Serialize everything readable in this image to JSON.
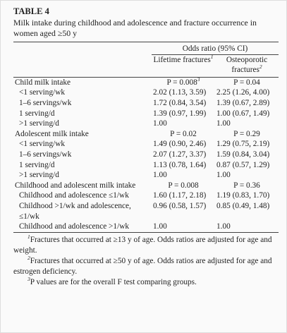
{
  "title": "TABLE 4",
  "caption": "Milk intake during childhood and adolescence and fracture occurrence in women aged ≥50 y",
  "header": {
    "group": "Odds ratio (95% CI)",
    "columns": [
      {
        "label": "Lifetime fractures",
        "note": "1"
      },
      {
        "label": "Osteoporotic fractures",
        "note": "2"
      }
    ]
  },
  "sections": [
    {
      "title": "Child milk intake",
      "cells": [
        "P = 0.008",
        "P = 0.04"
      ],
      "cell_note": "3",
      "rows": [
        [
          "<1 serving/wk",
          "2.02 (1.13, 3.59)",
          "2.25 (1.26, 4.00)"
        ],
        [
          "1–6 servings/wk",
          "1.72 (0.84, 3.54)",
          "1.39 (0.67, 2.89)"
        ],
        [
          "1 serving/d",
          "1.39 (0.97, 1.99)",
          "1.00 (0.67, 1.49)"
        ],
        [
          ">1 serving/d",
          "1.00",
          "1.00"
        ]
      ]
    },
    {
      "title": "Adolescent milk intake",
      "cells": [
        "P = 0.02",
        "P = 0.29"
      ],
      "rows": [
        [
          "<1 serving/wk",
          "1.49 (0.90, 2.46)",
          "1.29 (0.75, 2.19)"
        ],
        [
          "1–6 servings/wk",
          "2.07 (1.27, 3.37)",
          "1.59 (0.84, 3.04)"
        ],
        [
          "1 serving/d",
          "1.13 (0.78, 1.64)",
          "0.87 (0.57, 1.29)"
        ],
        [
          ">1 serving/d",
          "1.00",
          "1.00"
        ]
      ]
    },
    {
      "title": "Childhood and adolescent milk intake",
      "cells": [
        "P = 0.008",
        "P = 0.36"
      ],
      "rows": [
        [
          "Childhood and adolescence ≤1/wk",
          "1.60 (1.17, 2.18)",
          "1.19 (0.83, 1.70)"
        ],
        [
          "Childhood >1/wk and adolescence, ≤1/wk",
          "0.96 (0.58, 1.57)",
          "0.85 (0.49, 1.48)"
        ],
        [
          "Childhood and adolescence >1/wk",
          "1.00",
          "1.00"
        ]
      ]
    }
  ],
  "footnotes": [
    {
      "mark": "1",
      "text": "Fractures that occurred at ≥13 y of age. Odds ratios are adjusted for age and weight."
    },
    {
      "mark": "2",
      "text": "Fractures that occurred at ≥50 y of age. Odds ratios are adjusted for age and estrogen deficiency."
    },
    {
      "mark": "3",
      "text": "P values are for the overall F test comparing groups."
    }
  ]
}
